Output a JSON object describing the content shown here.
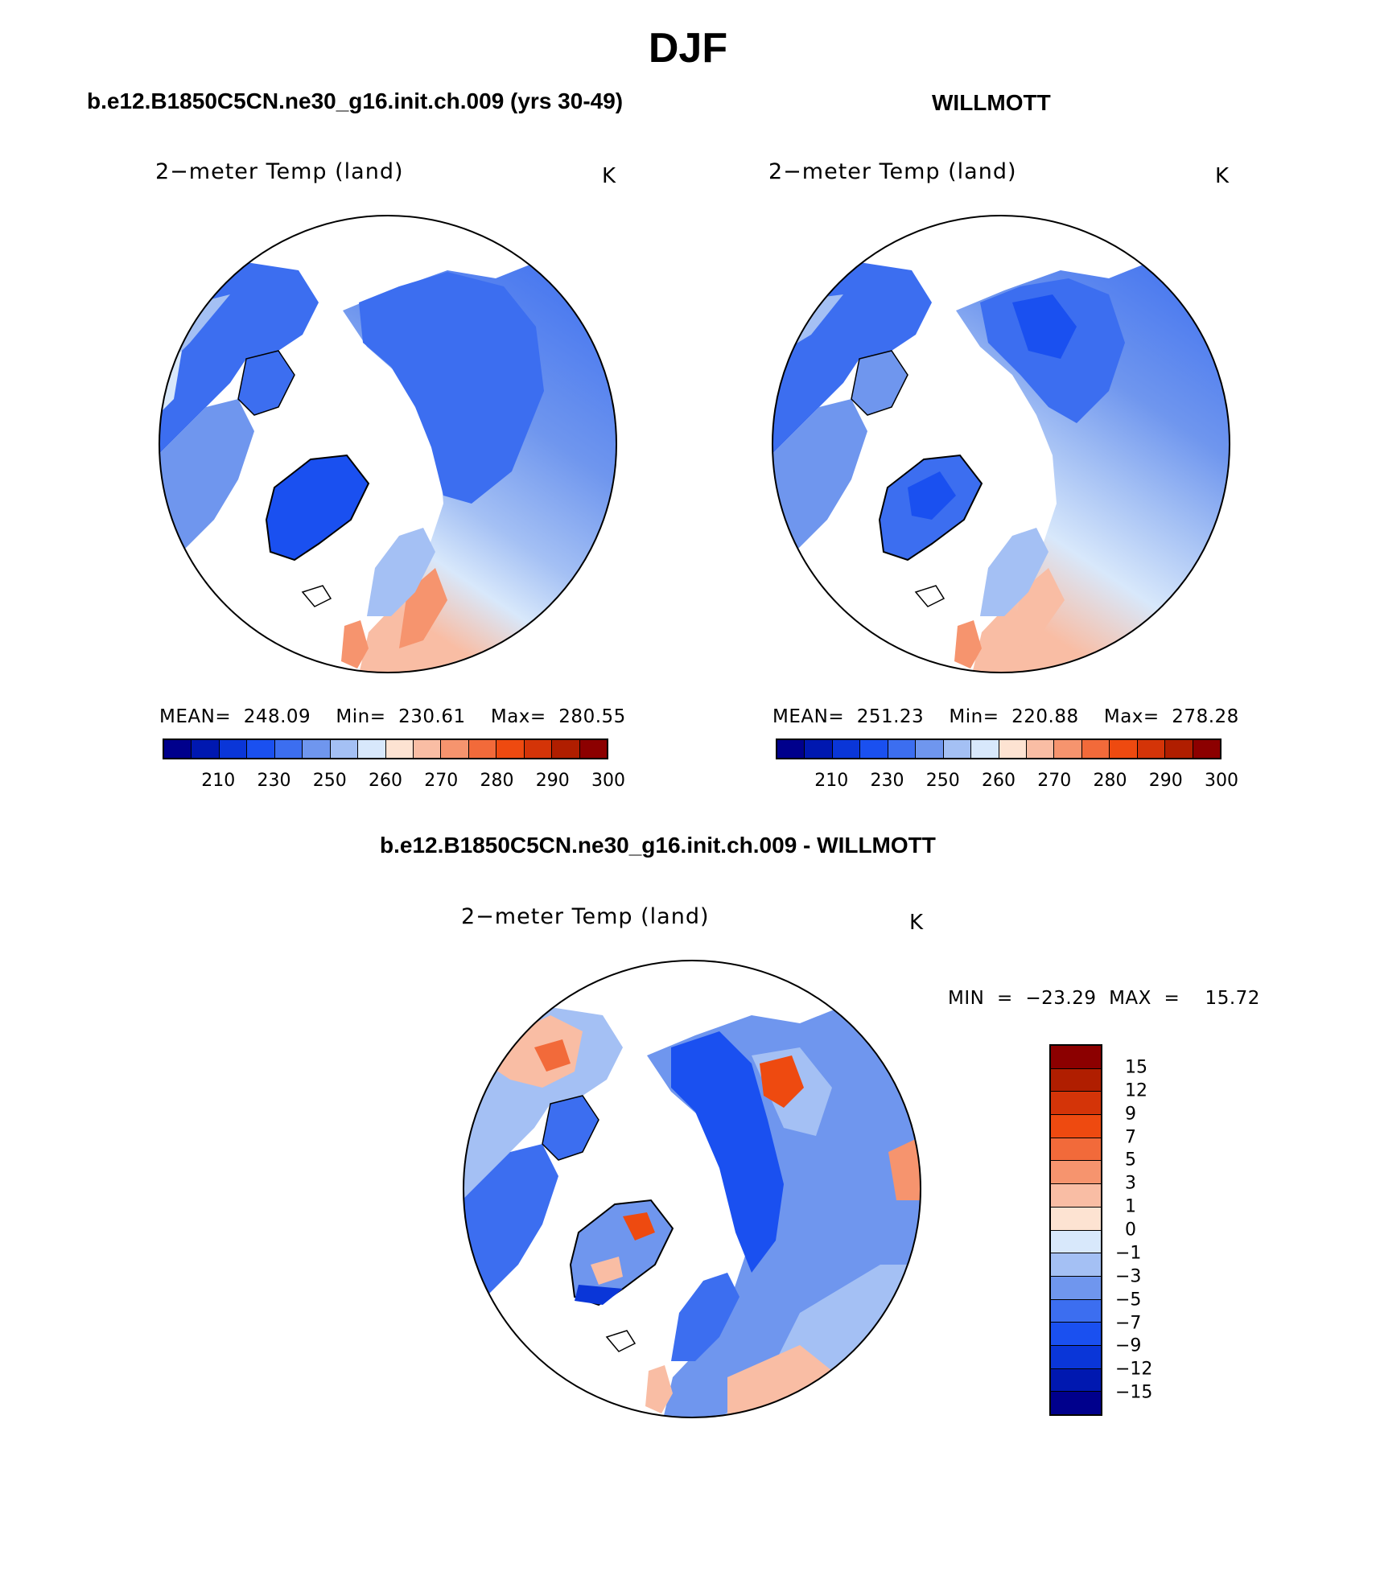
{
  "title": "DJF",
  "panels": {
    "model": {
      "case_title": "b.e12.B1850C5CN.ne30_g16.init.ch.009 (yrs 30-49)",
      "var_title": "2−meter Temp (land)",
      "units": "K",
      "stats": "MEAN=  248.09    Min=  230.61    Max=  280.55"
    },
    "obs": {
      "case_title": "WILLMOTT",
      "var_title": "2−meter Temp (land)",
      "units": "K",
      "stats": "MEAN=  251.23    Min=  220.88    Max=  278.28"
    },
    "diff": {
      "case_title": "b.e12.B1850C5CN.ne30_g16.init.ch.009 - WILLMOTT",
      "var_title": "2−meter Temp (land)",
      "units": "K",
      "stats": "MIN  =  −23.29  MAX  =    15.72"
    }
  },
  "abs_colorbar": {
    "colors": [
      "#00008c",
      "#0018b0",
      "#0a36d8",
      "#1a50f0",
      "#3c6ef0",
      "#6f96ee",
      "#a4c0f4",
      "#d8e8fb",
      "#fde3d2",
      "#f9bda4",
      "#f6946e",
      "#f26a3a",
      "#ee4a10",
      "#d43408",
      "#b01e00",
      "#8c0000"
    ],
    "ticks": [
      "210",
      "230",
      "250",
      "260",
      "270",
      "280",
      "290",
      "300"
    ]
  },
  "diff_colorbar": {
    "colors": [
      "#8c0000",
      "#b01e00",
      "#d43408",
      "#ee4a10",
      "#f26a3a",
      "#f6946e",
      "#f9bda4",
      "#fde3d2",
      "#d8e8fb",
      "#a4c0f4",
      "#6f96ee",
      "#3c6ef0",
      "#1a50f0",
      "#0a36d8",
      "#0018b0",
      "#00008c"
    ],
    "ticks": [
      "15",
      "12",
      "9",
      "7",
      "5",
      "3",
      "1",
      "0",
      "−1",
      "−3",
      "−5",
      "−7",
      "−9",
      "−12",
      "−15"
    ]
  }
}
